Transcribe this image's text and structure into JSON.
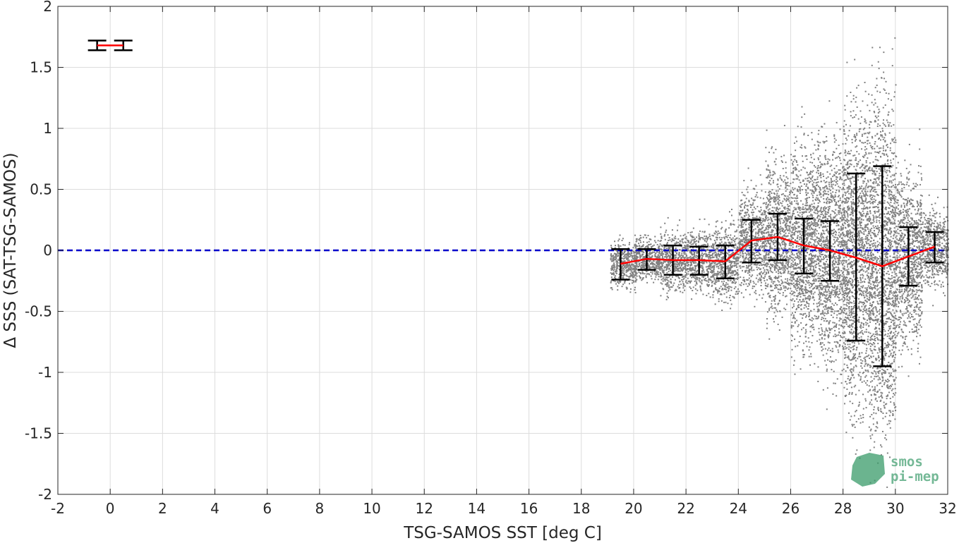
{
  "chart_data": {
    "type": "scatter",
    "title": "",
    "xlabel": "TSG-SAMOS SST [deg C]",
    "ylabel": "Δ SSS (SAT-TSG-SAMOS)",
    "xlim": [
      -2,
      32
    ],
    "ylim": [
      -2,
      2
    ],
    "xticks": [
      -2,
      0,
      2,
      4,
      6,
      8,
      10,
      12,
      14,
      16,
      18,
      20,
      22,
      24,
      26,
      28,
      30,
      32
    ],
    "xtick_labels": [
      "-2",
      "0",
      "2",
      "4",
      "6",
      "8",
      "10",
      "12",
      "14",
      "16",
      "18",
      "20",
      "22",
      "24",
      "26",
      "28",
      "30",
      "32"
    ],
    "yticks": [
      -2,
      -1.5,
      -1,
      -0.5,
      0,
      0.5,
      1,
      1.5,
      2
    ],
    "ytick_labels": [
      "-2",
      "-1.5",
      "-1",
      "-0.5",
      "0",
      "0.5",
      "1",
      "1.5",
      "2"
    ],
    "grid": true,
    "reference_line": {
      "y": 0,
      "style": "dashed",
      "color": "#0000cc"
    },
    "scatter_color": "#808080",
    "mean_line_color": "#ff0000",
    "errorbar_color": "#000000",
    "scatter_cloud": [
      {
        "x": 19.6,
        "mean": -0.11,
        "spread": 0.09
      },
      {
        "x": 20.5,
        "mean": -0.07,
        "spread": 0.08
      },
      {
        "x": 21.5,
        "mean": -0.08,
        "spread": 0.12
      },
      {
        "x": 22.5,
        "mean": -0.08,
        "spread": 0.12
      },
      {
        "x": 23.5,
        "mean": -0.09,
        "spread": 0.15
      },
      {
        "x": 24.5,
        "mean": 0.08,
        "spread": 0.2
      },
      {
        "x": 25.5,
        "mean": 0.11,
        "spread": 0.3
      },
      {
        "x": 26.5,
        "mean": 0.04,
        "spread": 0.4
      },
      {
        "x": 27.5,
        "mean": 0.0,
        "spread": 0.45
      },
      {
        "x": 28.5,
        "mean": -0.05,
        "spread": 0.6
      },
      {
        "x": 29.5,
        "mean": -0.13,
        "spread": 0.65
      },
      {
        "x": 30.5,
        "mean": -0.05,
        "spread": 0.35
      },
      {
        "x": 31.5,
        "mean": 0.03,
        "spread": 0.15
      }
    ],
    "mean_line": {
      "x": [
        19.5,
        20.5,
        21.5,
        22.5,
        23.5,
        24.5,
        25.5,
        26.5,
        27.5,
        28.5,
        29.5,
        30.5,
        31.5
      ],
      "y": [
        -0.11,
        -0.07,
        -0.08,
        -0.08,
        -0.09,
        0.08,
        0.11,
        0.04,
        0.0,
        -0.06,
        -0.13,
        -0.05,
        0.03
      ]
    },
    "error_bars": [
      {
        "x": 19.5,
        "low": -0.24,
        "high": 0.01
      },
      {
        "x": 20.5,
        "low": -0.16,
        "high": 0.01
      },
      {
        "x": 21.5,
        "low": -0.2,
        "high": 0.04
      },
      {
        "x": 22.5,
        "low": -0.2,
        "high": 0.03
      },
      {
        "x": 23.5,
        "low": -0.23,
        "high": 0.04
      },
      {
        "x": 24.5,
        "low": -0.1,
        "high": 0.25
      },
      {
        "x": 25.5,
        "low": -0.08,
        "high": 0.3
      },
      {
        "x": 26.5,
        "low": -0.19,
        "high": 0.26
      },
      {
        "x": 27.5,
        "low": -0.25,
        "high": 0.24
      },
      {
        "x": 28.5,
        "low": -0.74,
        "high": 0.63
      },
      {
        "x": 29.5,
        "low": -0.95,
        "high": 0.69
      },
      {
        "x": 30.5,
        "low": -0.29,
        "high": 0.19
      },
      {
        "x": 31.5,
        "low": -0.1,
        "high": 0.15
      }
    ],
    "legend_sample": {
      "x_left": -0.5,
      "x_right": 0.5,
      "y": 1.68,
      "cap_low": 1.64,
      "cap_high": 1.72
    }
  },
  "logo": {
    "line1": "smos",
    "line2": "pi-mep",
    "color": "#3a9b6a"
  }
}
